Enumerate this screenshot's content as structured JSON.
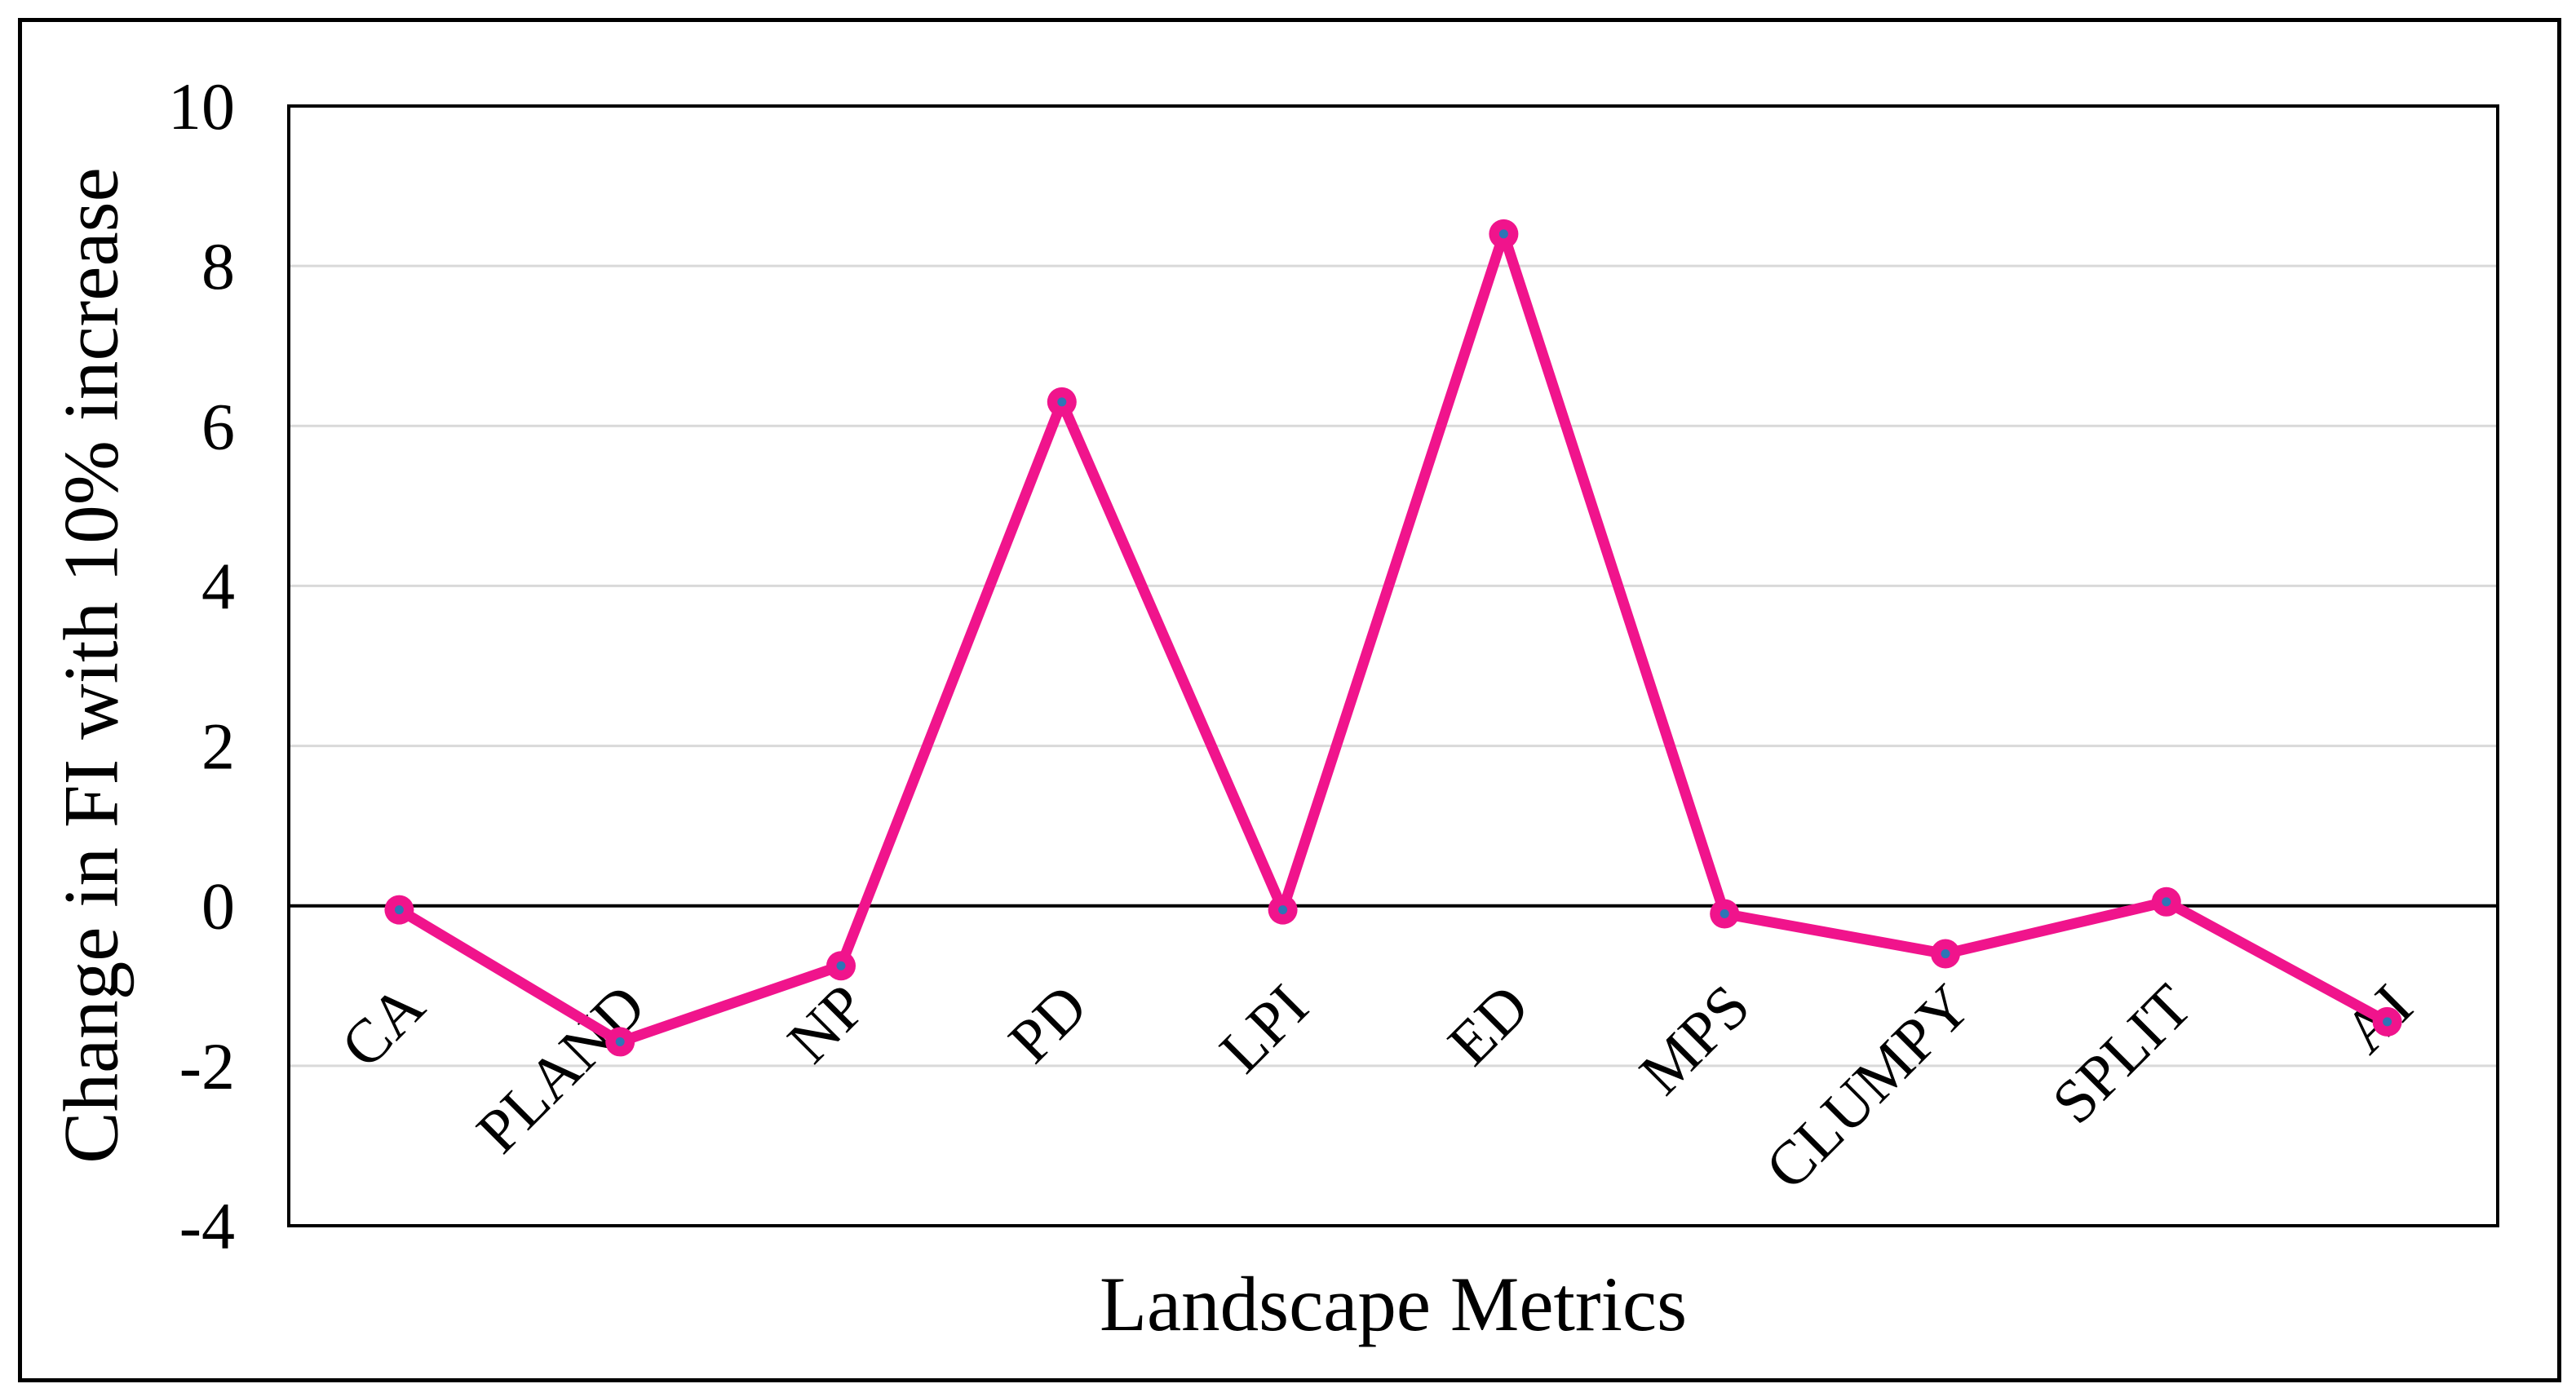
{
  "figure": {
    "background": "#FFFFFF",
    "border_color": "#000000"
  },
  "chart_data": {
    "type": "line",
    "title": "",
    "categories": [
      "CA",
      "PLAND",
      "NP",
      "PD",
      "LPI",
      "ED",
      "MPS",
      "CLUMPY",
      "SPLIT",
      "AI"
    ],
    "values": [
      -0.05,
      -1.7,
      -0.75,
      6.3,
      -0.05,
      8.4,
      -0.1,
      -0.6,
      0.05,
      -1.45
    ],
    "xlabel": "Landscape Metrics",
    "ylabel": "Change in FI with 10% increase",
    "ylim": [
      -4,
      10
    ],
    "ytick_step": 2,
    "yticks": [
      10,
      8,
      6,
      4,
      2,
      0,
      -2,
      -4
    ],
    "grid_values": [
      8,
      6,
      4,
      2,
      -2
    ],
    "grid": true,
    "legend": "none",
    "marker_style": "circle-with-dot",
    "colors": {
      "line": "#F0148C",
      "marker_fill": "#F0148C",
      "marker_dot": "#2E75B6",
      "gridline": "#D9D9D9",
      "axis": "#000000",
      "text": "#000000"
    }
  }
}
